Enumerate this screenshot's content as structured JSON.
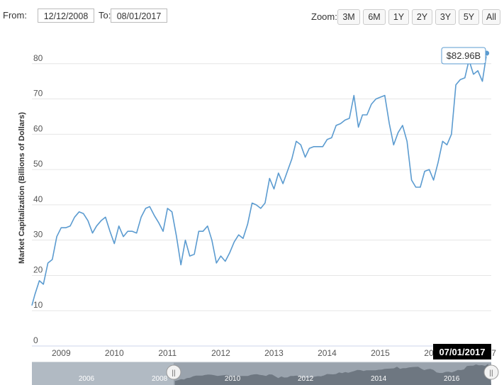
{
  "range_selector": {
    "from_label": "From:",
    "from_value": "12/12/2008",
    "to_label": "To:",
    "to_value": "08/01/2017",
    "zoom_label": "Zoom:",
    "zoom_buttons": [
      "3M",
      "6M",
      "1Y",
      "2Y",
      "3Y",
      "5Y",
      "All"
    ]
  },
  "tooltip": {
    "text": "$82.96B"
  },
  "hover_date": "07/01/2017",
  "navigator": {
    "year_labels": [
      "2006",
      "2008",
      "2010",
      "2012",
      "2014",
      "2016"
    ],
    "handle_glyph": "||"
  },
  "chart_data": {
    "type": "line",
    "title": "",
    "xlabel": "",
    "ylabel": "Market Capitalization (Billions of Dollars)",
    "x_tick_labels": [
      "2009",
      "2010",
      "2011",
      "2012",
      "2013",
      "2014",
      "2015",
      "2016",
      "2017"
    ],
    "y_tick_labels": [
      "0",
      "10",
      "20",
      "30",
      "40",
      "50",
      "60",
      "70",
      "80"
    ],
    "ylim": [
      0,
      90
    ],
    "xlim": [
      "2008-12-12",
      "2017-08-01"
    ],
    "grid": "horizontal",
    "legend": "none",
    "line_color": "#5b9bd0",
    "x": [
      "2008-12",
      "2009-01",
      "2009-02",
      "2009-03",
      "2009-04",
      "2009-05",
      "2009-06",
      "2009-07",
      "2009-08",
      "2009-09",
      "2009-10",
      "2009-11",
      "2009-12",
      "2010-01",
      "2010-02",
      "2010-03",
      "2010-04",
      "2010-05",
      "2010-06",
      "2010-07",
      "2010-08",
      "2010-09",
      "2010-10",
      "2010-11",
      "2010-12",
      "2011-01",
      "2011-02",
      "2011-03",
      "2011-04",
      "2011-05",
      "2011-06",
      "2011-07",
      "2011-08",
      "2011-09",
      "2011-10",
      "2011-11",
      "2011-12",
      "2012-01",
      "2012-02",
      "2012-03",
      "2012-04",
      "2012-05",
      "2012-06",
      "2012-07",
      "2012-08",
      "2012-09",
      "2012-10",
      "2012-11",
      "2012-12",
      "2013-01",
      "2013-02",
      "2013-03",
      "2013-04",
      "2013-05",
      "2013-06",
      "2013-07",
      "2013-08",
      "2013-09",
      "2013-10",
      "2013-11",
      "2013-12",
      "2014-01",
      "2014-02",
      "2014-03",
      "2014-04",
      "2014-05",
      "2014-06",
      "2014-07",
      "2014-08",
      "2014-09",
      "2014-10",
      "2014-11",
      "2014-12",
      "2015-01",
      "2015-02",
      "2015-03",
      "2015-04",
      "2015-05",
      "2015-06",
      "2015-07",
      "2015-08",
      "2015-09",
      "2015-10",
      "2015-11",
      "2015-12",
      "2016-01",
      "2016-02",
      "2016-03",
      "2016-04",
      "2016-05",
      "2016-06",
      "2016-07",
      "2016-08",
      "2016-09",
      "2016-10",
      "2016-11",
      "2016-12",
      "2017-01",
      "2017-02",
      "2017-03",
      "2017-04",
      "2017-05",
      "2017-06",
      "2017-07"
    ],
    "values": [
      11.5,
      14.5,
      18.5,
      17.5,
      23.5,
      24.5,
      31,
      33.5,
      33.5,
      34,
      36.5,
      38,
      37.5,
      35.5,
      32,
      34,
      35.5,
      36.5,
      32.5,
      29,
      34,
      31,
      32.5,
      32.5,
      32,
      36.5,
      39,
      39.5,
      37,
      35,
      32.5,
      39,
      38,
      31,
      23,
      30,
      25.5,
      26,
      32.5,
      32.5,
      34,
      30,
      23.5,
      25.5,
      24,
      26.5,
      29.5,
      31.5,
      30.5,
      34.5,
      40.5,
      40,
      39,
      40.5,
      47.5,
      44.5,
      49,
      46,
      49.5,
      53,
      58,
      57,
      53.5,
      56,
      56.5,
      56.5,
      56.5,
      58.5,
      59,
      62.5,
      63,
      64,
      64.5,
      71,
      62,
      65.5,
      65.5,
      68.5,
      70,
      70.5,
      71,
      63,
      57,
      60.5,
      62.5,
      58,
      47,
      45,
      45,
      49.5,
      50,
      47,
      52,
      58,
      57,
      60,
      74,
      75.5,
      76,
      81,
      77,
      78,
      75,
      82.96
    ]
  }
}
